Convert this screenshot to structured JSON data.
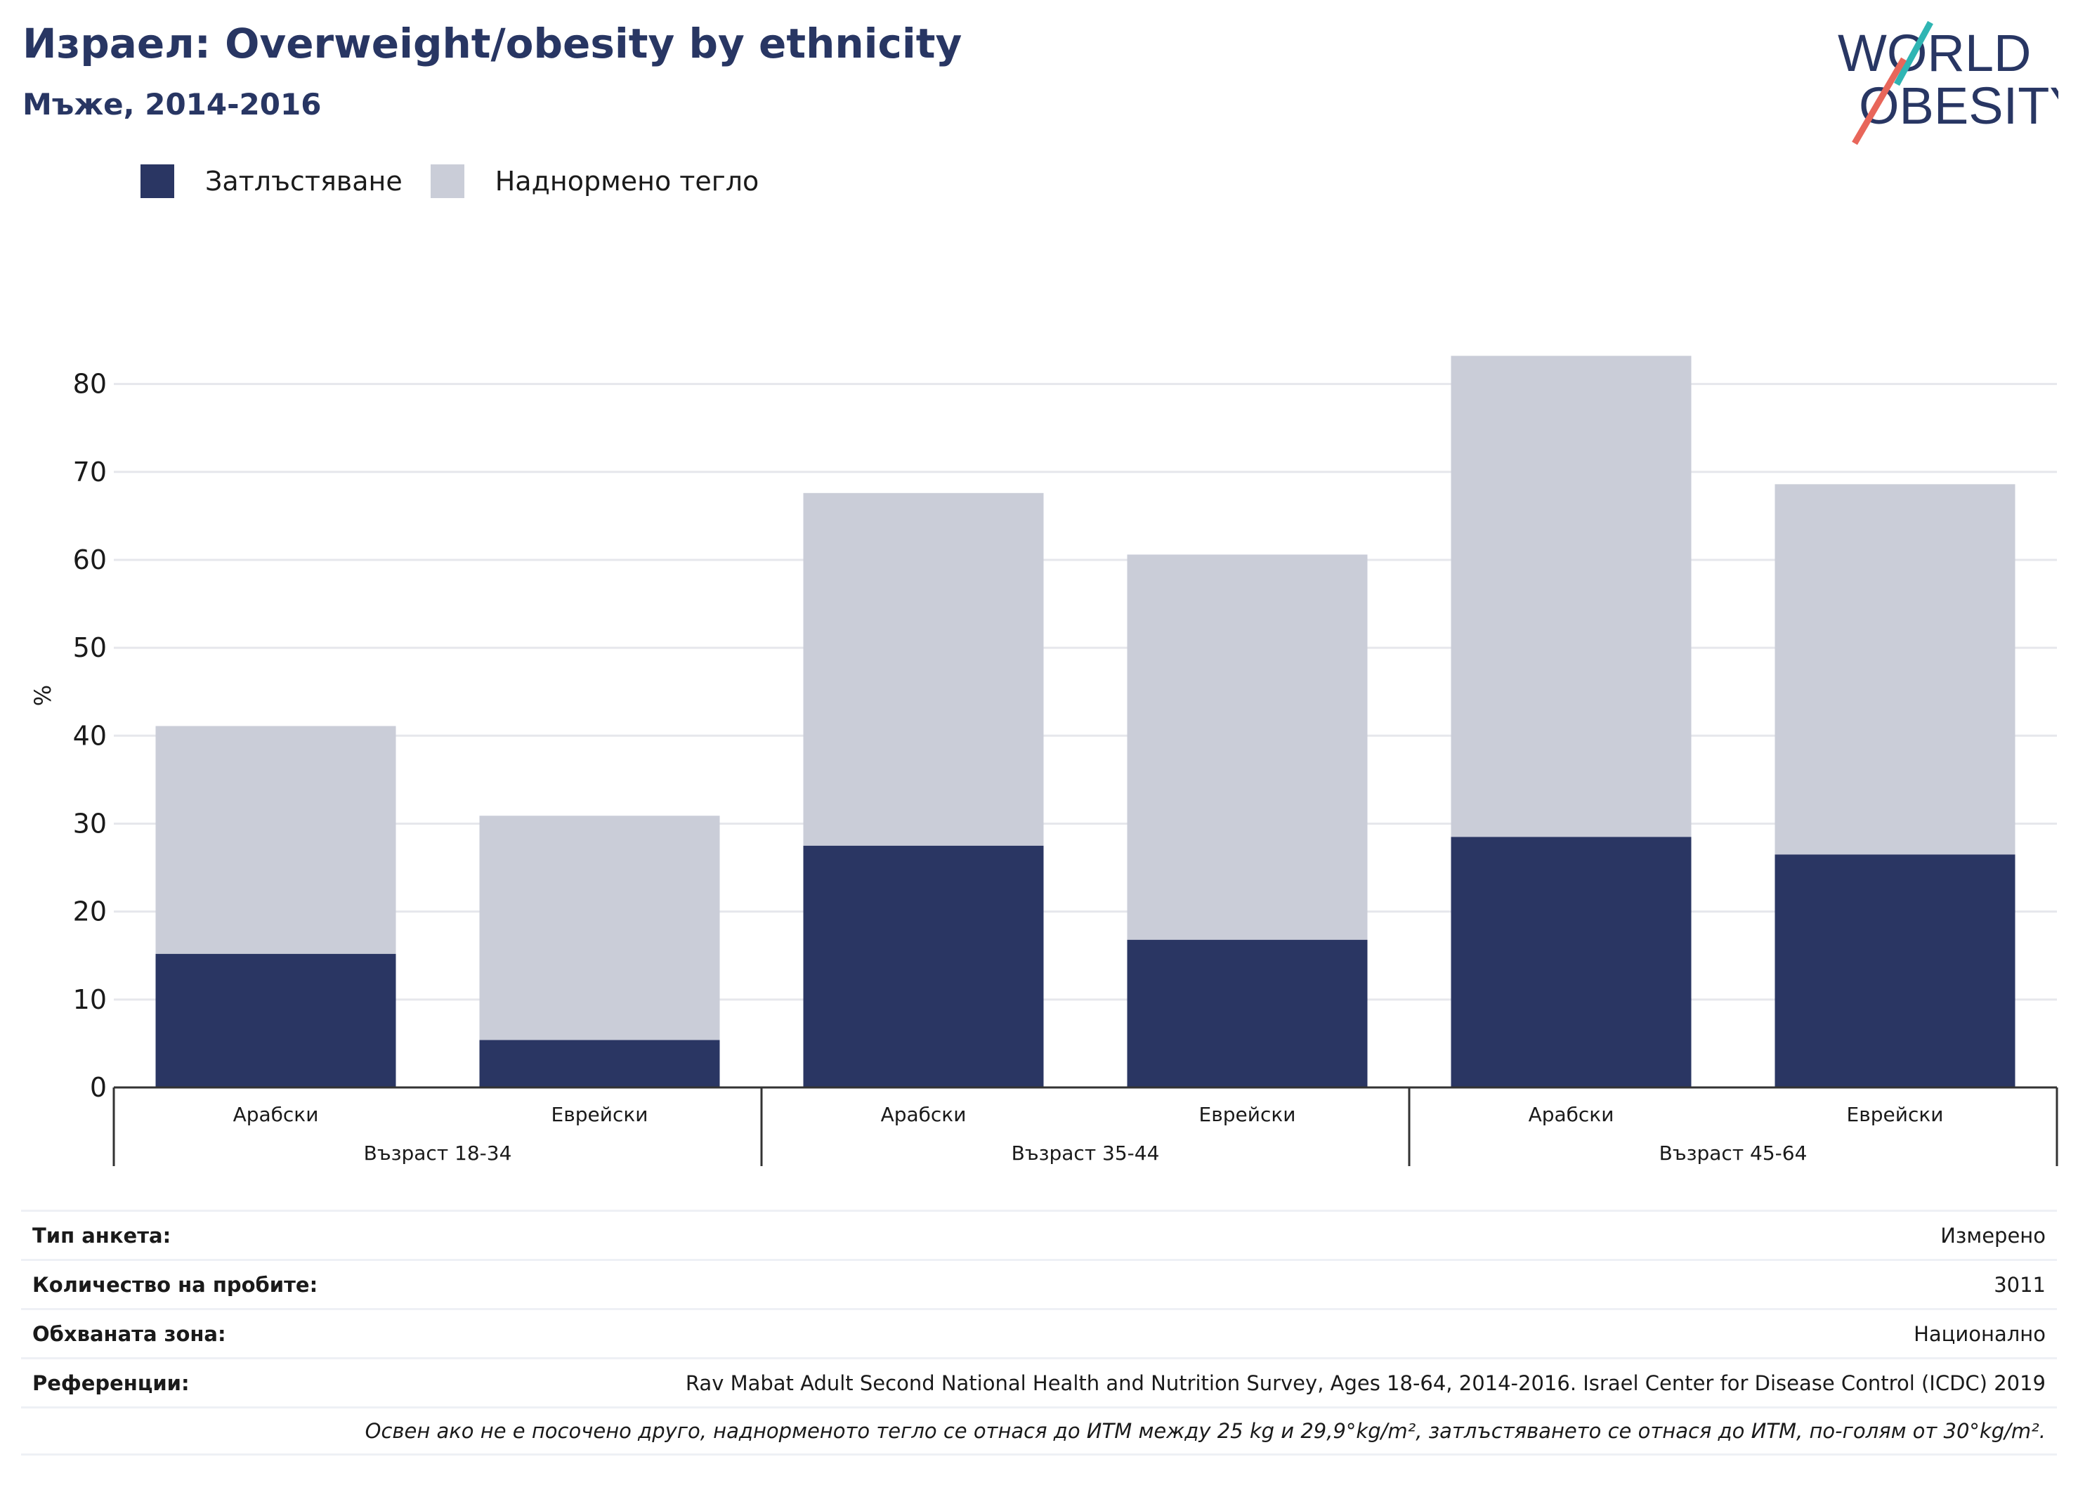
{
  "header": {
    "title": "Израел: Overweight/obesity by ethnicity",
    "subtitle": "Мъже, 2014-2016"
  },
  "logo": {
    "line1": "WORLD",
    "line2": "OBESITY",
    "colors": {
      "text": "#283663",
      "teal": "#2fb5b3",
      "coral": "#e8665a"
    }
  },
  "legend": [
    {
      "label": "Затлъстяване",
      "color": "#2a3663"
    },
    {
      "label": "Наднормено тегло",
      "color": "#cacdd8"
    }
  ],
  "chart_data": {
    "type": "bar",
    "stacked": true,
    "ylabel": "%",
    "xlabel": "",
    "ylim": [
      0,
      85
    ],
    "yticks": [
      0,
      10,
      20,
      30,
      40,
      50,
      60,
      70,
      80
    ],
    "grid": true,
    "groups": [
      {
        "label": "Възраст 18-34",
        "categories": [
          "Арабски",
          "Еврейски"
        ]
      },
      {
        "label": "Възраст 35-44",
        "categories": [
          "Арабски",
          "Еврейски"
        ]
      },
      {
        "label": "Възраст 45-64",
        "categories": [
          "Арабски",
          "Еврейски"
        ]
      }
    ],
    "categories": [
      "Арабски",
      "Еврейски",
      "Арабски",
      "Еврейски",
      "Арабски",
      "Еврейски"
    ],
    "series": [
      {
        "name": "Затлъстяване",
        "color": "#2a3663",
        "values": [
          15.2,
          5.4,
          27.5,
          16.8,
          28.5,
          26.5
        ]
      },
      {
        "name": "Наднормено тегло",
        "color": "#cacdd8",
        "values": [
          25.9,
          25.5,
          40.1,
          43.8,
          54.7,
          42.1
        ]
      }
    ]
  },
  "info": {
    "rows": [
      {
        "label": "Тип анкета:",
        "value": "Измерено"
      },
      {
        "label": "Количество на пробите:",
        "value": "3011"
      },
      {
        "label": "Обхваната зона:",
        "value": "Национално"
      },
      {
        "label": "Референции:",
        "value": "Rav Mabat Adult Second National Health and Nutrition Survey, Ages 18-64, 2014-2016. Israel Center for Disease Control (ICDC) 2019"
      }
    ],
    "note": "Освен ако не е посочено друго, наднорменото тегло се отнася до ИТМ между 25 kg и 29,9°kg/m², затлъстяването се отнася до ИТМ, по-голям от 30°kg/m²."
  }
}
